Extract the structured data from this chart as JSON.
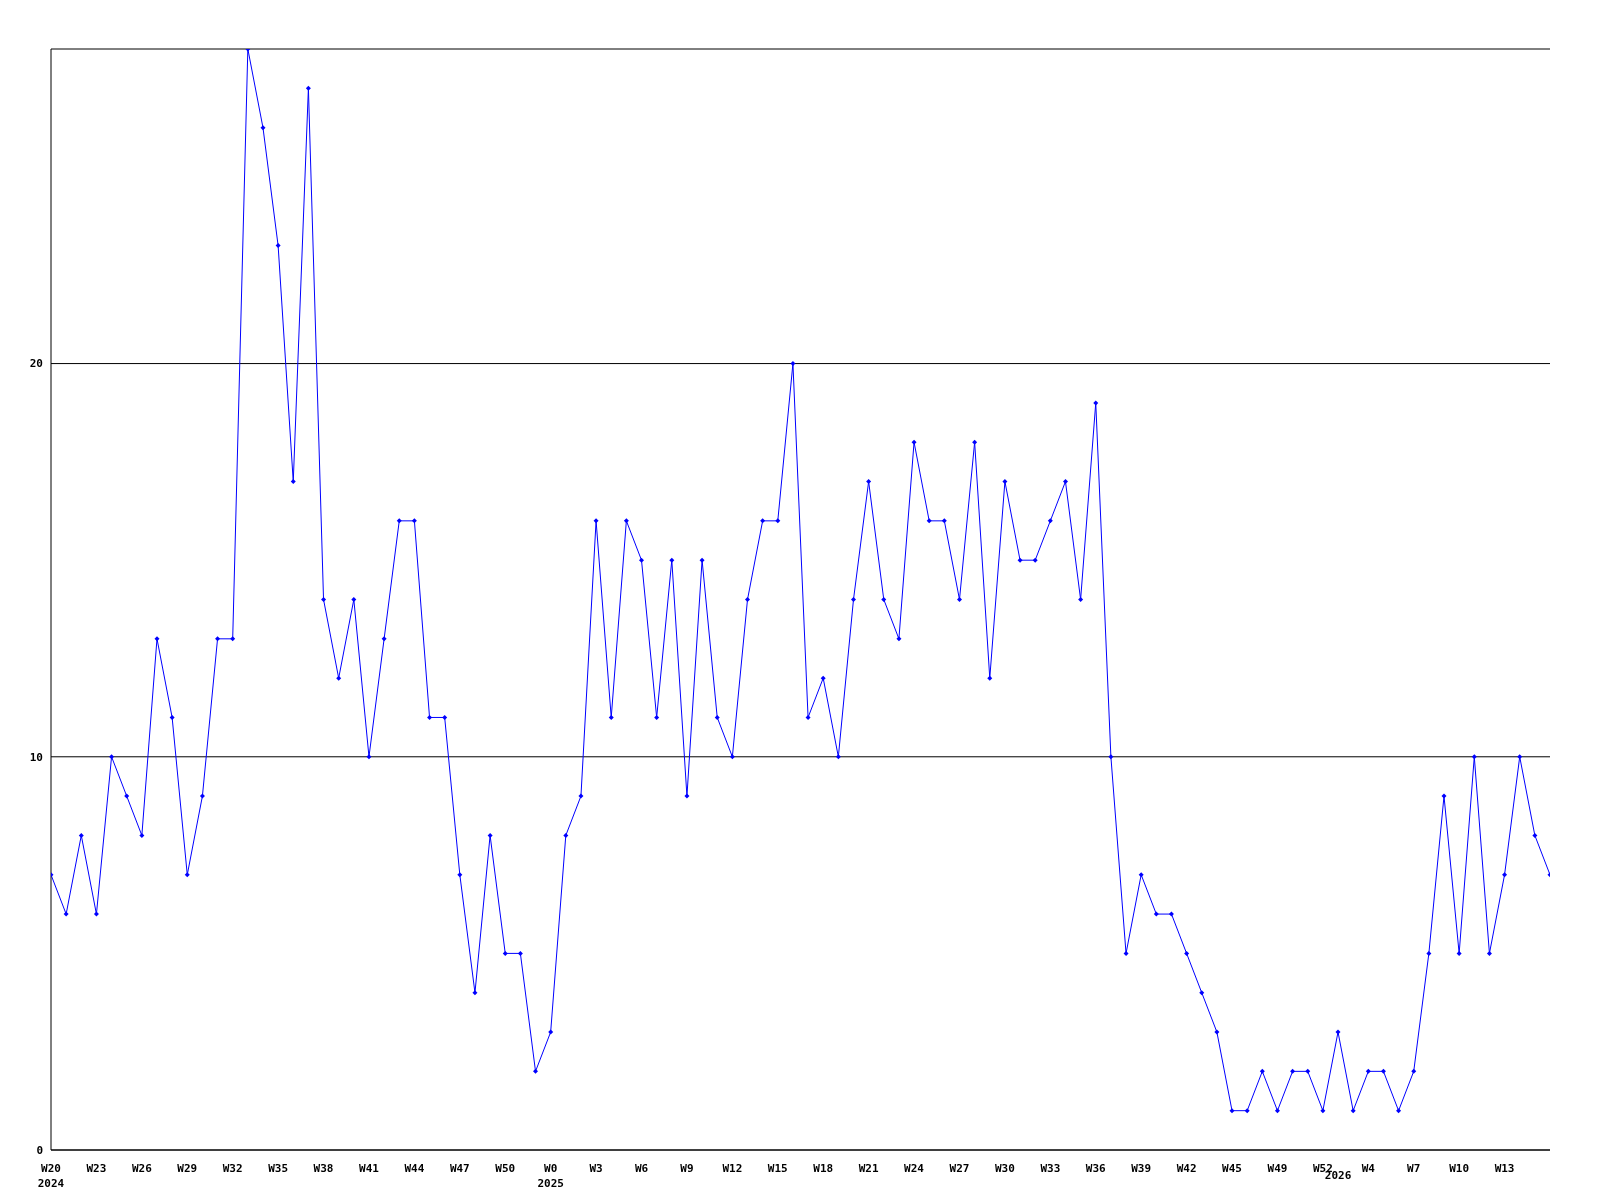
{
  "chart_data": {
    "type": "line",
    "categories": [
      "W20\n2024",
      null,
      null,
      "W23",
      null,
      null,
      "W26",
      null,
      null,
      "W29",
      null,
      null,
      "W32",
      null,
      null,
      "W35",
      null,
      null,
      "W38",
      null,
      null,
      "W41",
      null,
      null,
      "W44",
      null,
      null,
      "W47",
      null,
      null,
      "W50",
      null,
      null,
      "W0\n2025",
      null,
      null,
      "W3",
      null,
      null,
      "W6",
      null,
      null,
      "W9",
      null,
      null,
      "W12",
      null,
      null,
      "W15",
      null,
      null,
      "W18",
      null,
      null,
      "W21",
      null,
      null,
      "W24",
      null,
      null,
      "W27",
      null,
      null,
      "W30",
      null,
      null,
      "W33",
      null,
      null,
      "W36",
      null,
      null,
      "W39",
      null,
      null,
      "W42",
      null,
      null,
      "W45",
      null,
      null,
      "W49",
      null,
      null,
      "W52",
      "\n2026",
      null,
      "W4",
      null,
      null,
      "W7",
      null,
      null,
      "W10",
      null,
      null,
      "W13",
      null,
      null,
      null
    ],
    "series": [
      {
        "color": "#0000ff",
        "values": [
          7,
          6,
          8,
          6,
          10,
          9,
          8,
          13,
          11,
          7,
          9,
          13,
          13,
          28,
          26,
          23,
          17,
          27,
          14,
          12,
          14,
          10,
          13,
          16,
          16,
          11,
          11,
          7,
          4,
          8,
          5,
          5,
          2,
          3,
          8,
          9,
          16,
          11,
          16,
          15,
          11,
          15,
          9,
          15,
          11,
          10,
          14,
          16,
          16,
          20,
          11,
          12,
          10,
          14,
          17,
          14,
          13,
          18,
          16,
          16,
          14,
          18,
          12,
          17,
          15,
          15,
          16,
          17,
          14,
          19,
          10,
          5,
          7,
          6,
          6,
          5,
          4,
          3,
          1,
          1,
          2,
          1,
          2,
          2,
          1,
          3,
          1,
          2,
          2,
          1,
          2,
          5,
          9,
          5,
          10,
          5,
          7,
          10,
          8,
          7
        ]
      }
    ],
    "ylim": [
      0,
      28
    ],
    "yticks": [
      0,
      10,
      20
    ],
    "grid": "y",
    "marker": "diamond",
    "line_style": "solid",
    "legend": false
  }
}
